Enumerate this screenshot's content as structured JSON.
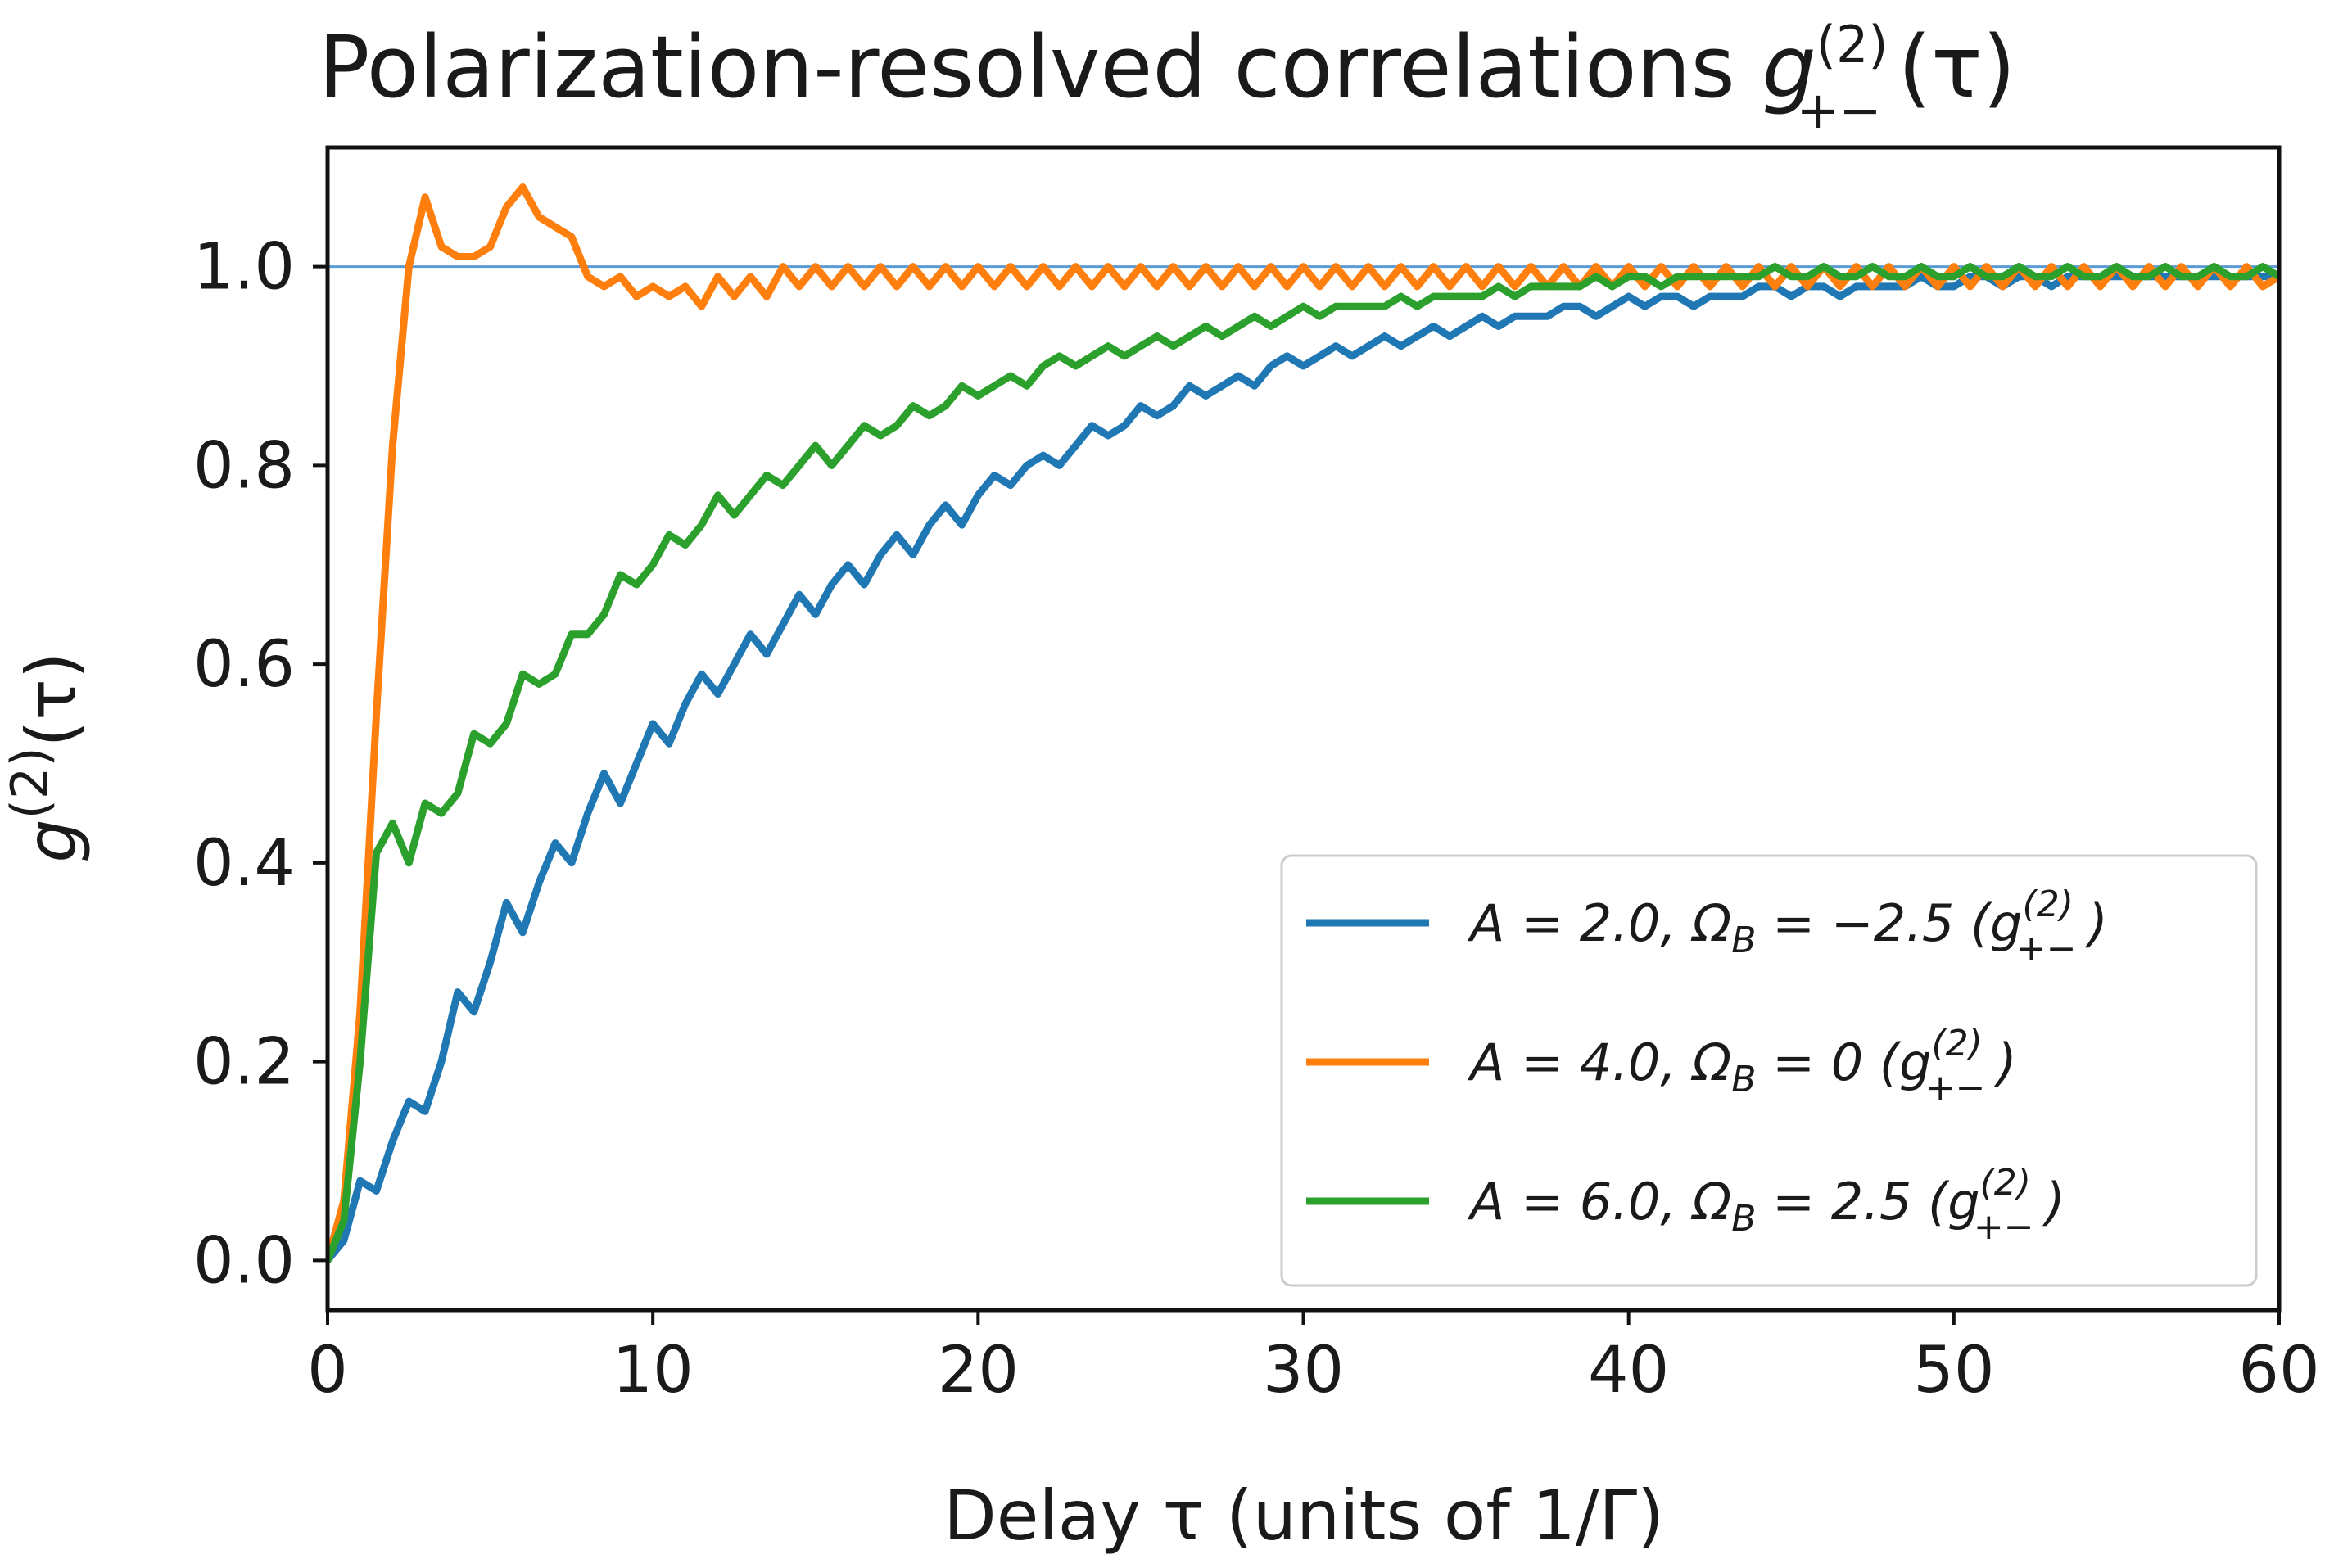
{
  "chart_data": {
    "type": "line",
    "title": {
      "prefix": "Polarization-resolved correlations ",
      "symbol": "g",
      "sup": "(2)",
      "sub": "+−",
      "suffix": "(τ)"
    },
    "xlabel": "Delay τ (units of 1/Γ)",
    "ylabel": {
      "symbol": "g",
      "sup": "(2)",
      "suffix": "(τ)"
    },
    "xlim": [
      0,
      60
    ],
    "ylim": [
      -0.05,
      1.12
    ],
    "xticks": [
      {
        "value": 0,
        "label": "0"
      },
      {
        "value": 10,
        "label": "10"
      },
      {
        "value": 20,
        "label": "20"
      },
      {
        "value": 30,
        "label": "30"
      },
      {
        "value": 40,
        "label": "40"
      },
      {
        "value": 50,
        "label": "50"
      },
      {
        "value": 60,
        "label": "60"
      }
    ],
    "yticks": [
      {
        "value": 0.0,
        "label": "0.0"
      },
      {
        "value": 0.2,
        "label": "0.2"
      },
      {
        "value": 0.4,
        "label": "0.4"
      },
      {
        "value": 0.6,
        "label": "0.6"
      },
      {
        "value": 0.8,
        "label": "0.8"
      },
      {
        "value": 1.0,
        "label": "1.0"
      }
    ],
    "reference_line": {
      "y": 1.0,
      "color": "#5b9bd5"
    },
    "legend_position": "lower-right",
    "series": [
      {
        "name": "A = 2.0, ΩB = −2.5 (g(2)+−)",
        "legend_text": "A = 2.0,  Ω",
        "legend_sub": "B",
        "legend_rest": " = −2.5 (g",
        "color": "#1f77b4",
        "x": [
          0,
          0.5,
          1.0,
          1.5,
          2.0,
          2.5,
          3.0,
          3.5,
          4.0,
          4.5,
          5.0,
          5.5,
          6.0,
          6.5,
          7.0,
          7.5,
          8.0,
          8.5,
          9.0,
          9.5,
          10.0,
          10.5,
          11.0,
          11.5,
          12.0,
          12.5,
          13.0,
          13.5,
          14.0,
          14.5,
          15.0,
          15.5,
          16.0,
          16.5,
          17.0,
          17.5,
          18.0,
          18.5,
          19.0,
          19.5,
          20.0,
          20.5,
          21.0,
          21.5,
          22.0,
          22.5,
          23.0,
          23.5,
          24.0,
          24.5,
          25.0,
          25.5,
          26.0,
          26.5,
          27.0,
          27.5,
          28.0,
          28.5,
          29.0,
          29.5,
          30.0,
          30.5,
          31.0,
          31.5,
          32.0,
          32.5,
          33.0,
          33.5,
          34.0,
          34.5,
          35.0,
          35.5,
          36.0,
          36.5,
          37.0,
          37.5,
          38.0,
          38.5,
          39.0,
          39.5,
          40.0,
          40.5,
          41.0,
          41.5,
          42.0,
          42.5,
          43.0,
          43.5,
          44.0,
          44.5,
          45.0,
          45.5,
          46.0,
          46.5,
          47.0,
          47.5,
          48.0,
          48.5,
          49.0,
          49.5,
          50.0,
          50.5,
          51.0,
          51.5,
          52.0,
          52.5,
          53.0,
          53.5,
          54.0,
          54.5,
          55.0,
          55.5,
          56.0,
          56.5,
          57.0,
          57.5,
          58.0,
          58.5,
          59.0,
          59.5,
          60.0
        ],
        "y": [
          0.0,
          0.02,
          0.08,
          0.07,
          0.12,
          0.16,
          0.15,
          0.2,
          0.27,
          0.25,
          0.3,
          0.36,
          0.33,
          0.38,
          0.42,
          0.4,
          0.45,
          0.49,
          0.46,
          0.5,
          0.54,
          0.52,
          0.56,
          0.59,
          0.57,
          0.6,
          0.63,
          0.61,
          0.64,
          0.67,
          0.65,
          0.68,
          0.7,
          0.68,
          0.71,
          0.73,
          0.71,
          0.74,
          0.76,
          0.74,
          0.77,
          0.79,
          0.78,
          0.8,
          0.81,
          0.8,
          0.82,
          0.84,
          0.83,
          0.84,
          0.86,
          0.85,
          0.86,
          0.88,
          0.87,
          0.88,
          0.89,
          0.88,
          0.9,
          0.91,
          0.9,
          0.91,
          0.92,
          0.91,
          0.92,
          0.93,
          0.92,
          0.93,
          0.94,
          0.93,
          0.94,
          0.95,
          0.94,
          0.95,
          0.95,
          0.95,
          0.96,
          0.96,
          0.95,
          0.96,
          0.97,
          0.96,
          0.97,
          0.97,
          0.96,
          0.97,
          0.97,
          0.97,
          0.98,
          0.98,
          0.97,
          0.98,
          0.98,
          0.97,
          0.98,
          0.98,
          0.98,
          0.98,
          0.99,
          0.98,
          0.98,
          0.99,
          0.99,
          0.98,
          0.99,
          0.99,
          0.98,
          0.99,
          0.99,
          0.99,
          0.99,
          0.99,
          0.99,
          0.99,
          0.99,
          0.99,
          0.99,
          0.99,
          0.99,
          0.99,
          0.99
        ]
      },
      {
        "name": "A = 4.0, ΩB = 0 (g(2)+−)",
        "legend_text": "A = 4.0,  Ω",
        "legend_sub": "B",
        "legend_rest": " = 0 (g",
        "color": "#ff7f0e",
        "x": [
          0,
          0.5,
          1.0,
          1.5,
          2.0,
          2.5,
          3.0,
          3.5,
          4.0,
          4.5,
          5.0,
          5.5,
          6.0,
          6.5,
          7.0,
          7.5,
          8.0,
          8.5,
          9.0,
          9.5,
          10.0,
          10.5,
          11.0,
          11.5,
          12.0,
          12.5,
          13.0,
          13.5,
          14.0,
          14.5,
          15.0,
          15.5,
          16.0,
          16.5,
          17.0,
          17.5,
          18.0,
          18.5,
          19.0,
          19.5,
          20.0,
          20.5,
          21.0,
          21.5,
          22.0,
          22.5,
          23.0,
          23.5,
          24.0,
          24.5,
          25.0,
          25.5,
          26.0,
          26.5,
          27.0,
          27.5,
          28.0,
          28.5,
          29.0,
          29.5,
          30.0,
          30.5,
          31.0,
          31.5,
          32.0,
          32.5,
          33.0,
          33.5,
          34.0,
          34.5,
          35.0,
          35.5,
          36.0,
          36.5,
          37.0,
          37.5,
          38.0,
          38.5,
          39.0,
          39.5,
          40.0,
          40.5,
          41.0,
          41.5,
          42.0,
          42.5,
          43.0,
          43.5,
          44.0,
          44.5,
          45.0,
          45.5,
          46.0,
          46.5,
          47.0,
          47.5,
          48.0,
          48.5,
          49.0,
          49.5,
          50.0,
          50.5,
          51.0,
          51.5,
          52.0,
          52.5,
          53.0,
          53.5,
          54.0,
          54.5,
          55.0,
          55.5,
          56.0,
          56.5,
          57.0,
          57.5,
          58.0,
          58.5,
          59.0,
          59.5,
          60.0
        ],
        "y": [
          0.0,
          0.06,
          0.25,
          0.55,
          0.82,
          1.0,
          1.07,
          1.02,
          1.01,
          1.01,
          1.02,
          1.06,
          1.08,
          1.05,
          1.04,
          1.03,
          0.99,
          0.98,
          0.99,
          0.97,
          0.98,
          0.97,
          0.98,
          0.96,
          0.99,
          0.97,
          0.99,
          0.97,
          1.0,
          0.98,
          1.0,
          0.98,
          1.0,
          0.98,
          1.0,
          0.98,
          1.0,
          0.98,
          1.0,
          0.98,
          1.0,
          0.98,
          1.0,
          0.98,
          1.0,
          0.98,
          1.0,
          0.98,
          1.0,
          0.98,
          1.0,
          0.98,
          1.0,
          0.98,
          1.0,
          0.98,
          1.0,
          0.98,
          1.0,
          0.98,
          1.0,
          0.98,
          1.0,
          0.98,
          1.0,
          0.98,
          1.0,
          0.98,
          1.0,
          0.98,
          1.0,
          0.98,
          1.0,
          0.98,
          1.0,
          0.98,
          1.0,
          0.98,
          1.0,
          0.98,
          1.0,
          0.98,
          1.0,
          0.98,
          1.0,
          0.98,
          1.0,
          0.98,
          1.0,
          0.98,
          1.0,
          0.98,
          1.0,
          0.98,
          1.0,
          0.98,
          1.0,
          0.98,
          1.0,
          0.98,
          1.0,
          0.98,
          1.0,
          0.98,
          1.0,
          0.98,
          1.0,
          0.98,
          1.0,
          0.98,
          1.0,
          0.98,
          1.0,
          0.98,
          1.0,
          0.98,
          1.0,
          0.98,
          1.0,
          0.98,
          0.99
        ]
      },
      {
        "name": "A = 6.0, ΩB = 2.5 (g(2)+−)",
        "legend_text": "A = 6.0,  Ω",
        "legend_sub": "B",
        "legend_rest": " = 2.5 (g",
        "color": "#2ca02c",
        "x": [
          0,
          0.5,
          1.0,
          1.5,
          2.0,
          2.5,
          3.0,
          3.5,
          4.0,
          4.5,
          5.0,
          5.5,
          6.0,
          6.5,
          7.0,
          7.5,
          8.0,
          8.5,
          9.0,
          9.5,
          10.0,
          10.5,
          11.0,
          11.5,
          12.0,
          12.5,
          13.0,
          13.5,
          14.0,
          14.5,
          15.0,
          15.5,
          16.0,
          16.5,
          17.0,
          17.5,
          18.0,
          18.5,
          19.0,
          19.5,
          20.0,
          20.5,
          21.0,
          21.5,
          22.0,
          22.5,
          23.0,
          23.5,
          24.0,
          24.5,
          25.0,
          25.5,
          26.0,
          26.5,
          27.0,
          27.5,
          28.0,
          28.5,
          29.0,
          29.5,
          30.0,
          30.5,
          31.0,
          31.5,
          32.0,
          32.5,
          33.0,
          33.5,
          34.0,
          34.5,
          35.0,
          35.5,
          36.0,
          36.5,
          37.0,
          37.5,
          38.0,
          38.5,
          39.0,
          39.5,
          40.0,
          40.5,
          41.0,
          41.5,
          42.0,
          42.5,
          43.0,
          43.5,
          44.0,
          44.5,
          45.0,
          45.5,
          46.0,
          46.5,
          47.0,
          47.5,
          48.0,
          48.5,
          49.0,
          49.5,
          50.0,
          50.5,
          51.0,
          51.5,
          52.0,
          52.5,
          53.0,
          53.5,
          54.0,
          54.5,
          55.0,
          55.5,
          56.0,
          56.5,
          57.0,
          57.5,
          58.0,
          58.5,
          59.0,
          59.5,
          60.0
        ],
        "y": [
          0.0,
          0.04,
          0.2,
          0.41,
          0.44,
          0.4,
          0.46,
          0.45,
          0.47,
          0.53,
          0.52,
          0.54,
          0.59,
          0.58,
          0.59,
          0.63,
          0.63,
          0.65,
          0.69,
          0.68,
          0.7,
          0.73,
          0.72,
          0.74,
          0.77,
          0.75,
          0.77,
          0.79,
          0.78,
          0.8,
          0.82,
          0.8,
          0.82,
          0.84,
          0.83,
          0.84,
          0.86,
          0.85,
          0.86,
          0.88,
          0.87,
          0.88,
          0.89,
          0.88,
          0.9,
          0.91,
          0.9,
          0.91,
          0.92,
          0.91,
          0.92,
          0.93,
          0.92,
          0.93,
          0.94,
          0.93,
          0.94,
          0.95,
          0.94,
          0.95,
          0.96,
          0.95,
          0.96,
          0.96,
          0.96,
          0.96,
          0.97,
          0.96,
          0.97,
          0.97,
          0.97,
          0.97,
          0.98,
          0.97,
          0.98,
          0.98,
          0.98,
          0.98,
          0.99,
          0.98,
          0.99,
          0.99,
          0.98,
          0.99,
          0.99,
          0.99,
          0.99,
          0.99,
          0.99,
          1.0,
          0.99,
          0.99,
          1.0,
          0.99,
          0.99,
          1.0,
          0.99,
          0.99,
          1.0,
          0.99,
          0.99,
          1.0,
          0.99,
          0.99,
          1.0,
          0.99,
          0.99,
          1.0,
          0.99,
          0.99,
          1.0,
          0.99,
          0.99,
          1.0,
          0.99,
          0.99,
          1.0,
          0.99,
          0.99,
          1.0,
          0.99
        ]
      }
    ],
    "legend_sup": "(2)",
    "legend_sub_pm": "+−",
    "legend_close": ")"
  }
}
